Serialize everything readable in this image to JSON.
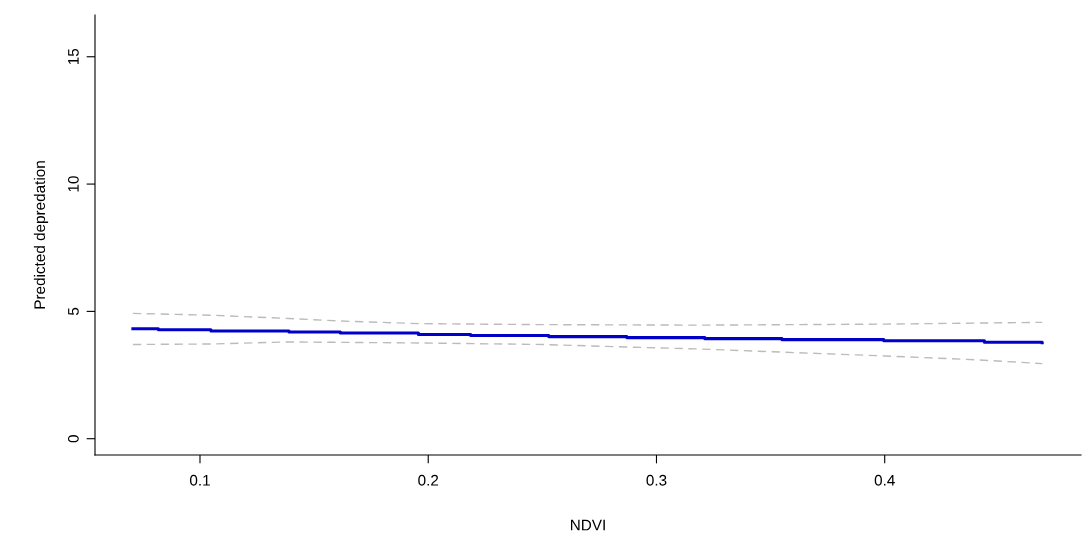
{
  "chart_data": {
    "type": "line",
    "xlabel": "NDVI",
    "ylabel": "Predicted depredation",
    "xlim": [
      0.054,
      0.486
    ],
    "xticks": [
      0.1,
      0.2,
      0.3,
      0.4
    ],
    "ylim": [
      -0.64,
      16.64
    ],
    "yticks": [
      0,
      5,
      10,
      15
    ],
    "grid": false,
    "legend": false,
    "marker": "none",
    "series": [
      {
        "type": "step",
        "color": "#0000c8",
        "line_style": "solid",
        "x": [
          0.0706,
          0.0818,
          0.1048,
          0.139,
          0.1615,
          0.1957,
          0.2186,
          0.2528,
          0.287,
          0.3212,
          0.355,
          0.3996,
          0.4437,
          0.469
        ],
        "values": [
          4.32,
          4.28,
          4.23,
          4.19,
          4.15,
          4.09,
          4.05,
          4.01,
          3.97,
          3.93,
          3.89,
          3.85,
          3.79,
          3.77
        ]
      },
      {
        "color": "#bbbbbb",
        "line_style": "dashed",
        "x": [
          0.0706,
          0.105,
          0.139,
          0.162,
          0.196,
          0.25,
          0.32,
          0.4,
          0.469
        ],
        "values": [
          4.92,
          4.85,
          4.72,
          4.62,
          4.52,
          4.48,
          4.46,
          4.5,
          4.57
        ]
      },
      {
        "color": "#bbbbbb",
        "line_style": "dashed",
        "x": [
          0.0706,
          0.105,
          0.139,
          0.196,
          0.25,
          0.287,
          0.32,
          0.355,
          0.4,
          0.44,
          0.469
        ],
        "values": [
          3.7,
          3.72,
          3.8,
          3.76,
          3.7,
          3.6,
          3.52,
          3.4,
          3.25,
          3.1,
          2.95
        ]
      }
    ]
  }
}
